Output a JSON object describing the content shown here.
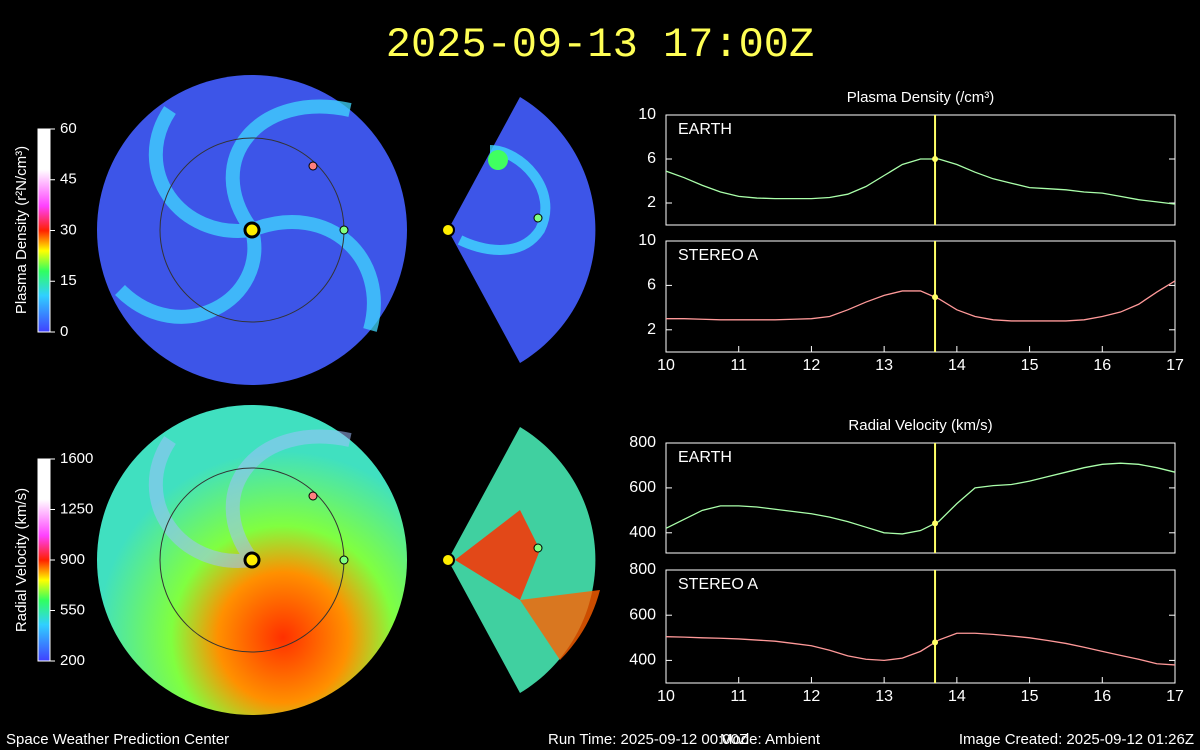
{
  "title": "2025-09-13 17:00Z",
  "footer": {
    "center": "Space Weather Prediction Center",
    "run_time": "Run Time: 2025-09-12 00:00Z",
    "mode": "Mode: Ambient",
    "created": "Image Created: 2025-09-12 01:26Z"
  },
  "chart_data": [
    {
      "type": "colorbar",
      "label": "Plasma Density (r²N/cm³)",
      "ylim": [
        0,
        60
      ],
      "yticks": [
        0,
        15,
        30,
        45,
        60
      ]
    },
    {
      "type": "colorbar",
      "label": "Radial Velocity (km/s)",
      "ylim": [
        200,
        1600
      ],
      "yticks": [
        200,
        550,
        900,
        1250,
        1600
      ]
    },
    {
      "type": "line",
      "title": "Plasma Density (/cm³)",
      "xlim": [
        10,
        17
      ],
      "ylim": [
        0,
        10
      ],
      "yticks": [
        2,
        6,
        10
      ],
      "marker_x": 13.7,
      "marker_color": "#ffff66",
      "x": [
        10,
        10.25,
        10.5,
        10.75,
        11,
        11.25,
        11.5,
        11.75,
        12,
        12.25,
        12.5,
        12.75,
        13,
        13.25,
        13.5,
        13.75,
        14,
        14.25,
        14.5,
        14.75,
        15,
        15.25,
        15.5,
        15.75,
        16,
        16.25,
        16.5,
        16.75,
        17
      ],
      "series": [
        {
          "name": "EARTH",
          "color": "#aaffaa",
          "values": [
            4.9,
            4.3,
            3.6,
            3.0,
            2.6,
            2.45,
            2.4,
            2.4,
            2.4,
            2.5,
            2.8,
            3.5,
            4.5,
            5.5,
            6.0,
            6.0,
            5.5,
            4.8,
            4.2,
            3.8,
            3.4,
            3.3,
            3.2,
            3.0,
            2.9,
            2.6,
            2.3,
            2.1,
            1.9
          ]
        }
      ]
    },
    {
      "type": "line",
      "xlim": [
        10,
        17
      ],
      "ylim": [
        0,
        10
      ],
      "yticks": [
        2,
        6,
        10
      ],
      "xticks": [
        10,
        11,
        12,
        13,
        14,
        15,
        16,
        17
      ],
      "marker_x": 13.7,
      "marker_color": "#ffff66",
      "x": [
        10,
        10.25,
        10.5,
        10.75,
        11,
        11.25,
        11.5,
        11.75,
        12,
        12.25,
        12.5,
        12.75,
        13,
        13.25,
        13.5,
        13.75,
        14,
        14.25,
        14.5,
        14.75,
        15,
        15.25,
        15.5,
        15.75,
        16,
        16.25,
        16.5,
        16.75,
        17
      ],
      "series": [
        {
          "name": "STEREO A",
          "color": "#ff9999",
          "values": [
            3.0,
            3.0,
            2.95,
            2.9,
            2.9,
            2.9,
            2.9,
            2.95,
            3.0,
            3.2,
            3.8,
            4.5,
            5.1,
            5.5,
            5.5,
            4.8,
            3.8,
            3.2,
            2.9,
            2.8,
            2.8,
            2.8,
            2.8,
            2.9,
            3.2,
            3.6,
            4.3,
            5.4,
            6.4
          ]
        }
      ]
    },
    {
      "type": "line",
      "title": "Radial Velocity (km/s)",
      "xlim": [
        10,
        17
      ],
      "ylim": [
        310,
        800
      ],
      "yticks": [
        400,
        600,
        800
      ],
      "marker_x": 13.7,
      "marker_color": "#ffff66",
      "x": [
        10,
        10.25,
        10.5,
        10.75,
        11,
        11.25,
        11.5,
        11.75,
        12,
        12.25,
        12.5,
        12.75,
        13,
        13.25,
        13.5,
        13.75,
        14,
        14.25,
        14.5,
        14.75,
        15,
        15.25,
        15.5,
        15.75,
        16,
        16.25,
        16.5,
        16.75,
        17
      ],
      "series": [
        {
          "name": "EARTH",
          "color": "#aaffaa",
          "values": [
            420,
            460,
            500,
            520,
            520,
            515,
            505,
            495,
            485,
            470,
            450,
            425,
            400,
            395,
            410,
            450,
            530,
            600,
            610,
            615,
            630,
            650,
            670,
            690,
            705,
            710,
            705,
            690,
            670
          ]
        }
      ]
    },
    {
      "type": "line",
      "xlim": [
        10,
        17
      ],
      "ylim": [
        300,
        800
      ],
      "yticks": [
        400,
        600,
        800
      ],
      "xticks": [
        10,
        11,
        12,
        13,
        14,
        15,
        16,
        17
      ],
      "marker_x": 13.7,
      "marker_color": "#ffff66",
      "x": [
        10,
        10.25,
        10.5,
        10.75,
        11,
        11.25,
        11.5,
        11.75,
        12,
        12.25,
        12.5,
        12.75,
        13,
        13.25,
        13.5,
        13.75,
        14,
        14.25,
        14.5,
        14.75,
        15,
        15.25,
        15.5,
        15.75,
        16,
        16.25,
        16.5,
        16.75,
        17
      ],
      "series": [
        {
          "name": "STEREO A",
          "color": "#ff9999",
          "values": [
            505,
            503,
            500,
            498,
            495,
            490,
            485,
            475,
            465,
            445,
            420,
            405,
            400,
            410,
            440,
            490,
            520,
            520,
            515,
            508,
            500,
            488,
            475,
            458,
            440,
            422,
            405,
            385,
            380
          ]
        }
      ]
    }
  ]
}
